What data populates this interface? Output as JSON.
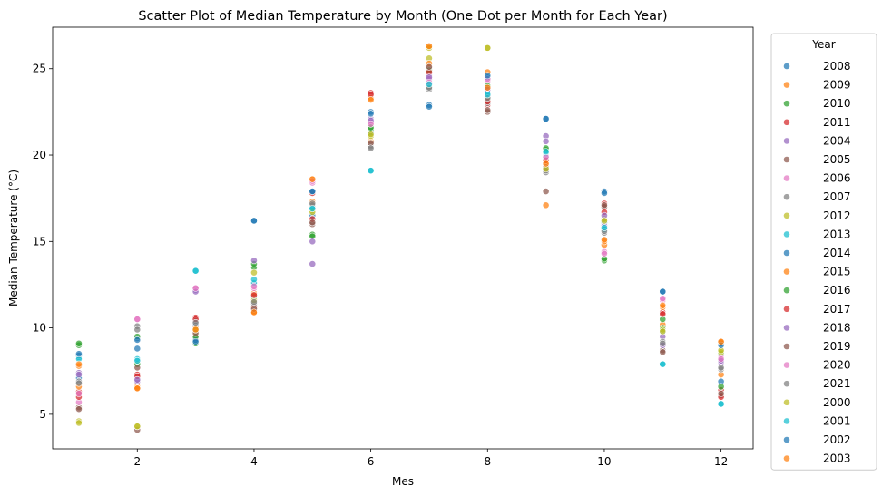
{
  "chart_data": {
    "type": "scatter",
    "title": "Scatter Plot of Median Temperature by Month (One Dot per Month for Each Year)",
    "xlabel": "Mes",
    "ylabel": "Median Temperature (°C)",
    "xlim": [
      0.55,
      12.55
    ],
    "ylim": [
      3.0,
      27.4
    ],
    "xticks": [
      2,
      4,
      6,
      8,
      10,
      12
    ],
    "yticks": [
      5,
      10,
      15,
      20,
      25
    ],
    "grid": false,
    "legend": {
      "title": "Year",
      "placement": "outside-right"
    },
    "series": [
      {
        "name": "2008",
        "color": "#1f77b4",
        "points": [
          [
            1,
            7.1
          ],
          [
            2,
            9.4
          ],
          [
            3,
            10.2
          ],
          [
            4,
            11.8
          ],
          [
            5,
            16.5
          ],
          [
            6,
            21.3
          ],
          [
            7,
            24.3
          ],
          [
            8,
            23.4
          ],
          [
            9,
            19.8
          ],
          [
            10,
            16.1
          ],
          [
            11,
            9.8
          ],
          [
            12,
            6.9
          ]
        ]
      },
      {
        "name": "2009",
        "color": "#ff7f0e",
        "points": [
          [
            1,
            7.8
          ],
          [
            2,
            6.6
          ],
          [
            3,
            9.6
          ],
          [
            4,
            12.0
          ],
          [
            5,
            17.3
          ],
          [
            6,
            20.8
          ],
          [
            7,
            26.3
          ],
          [
            8,
            24.8
          ],
          [
            9,
            17.1
          ],
          [
            10,
            14.8
          ],
          [
            11,
            10.2
          ],
          [
            12,
            7.3
          ]
        ]
      },
      {
        "name": "2010",
        "color": "#2ca02c",
        "points": [
          [
            1,
            9.0
          ],
          [
            2,
            7.9
          ],
          [
            3,
            9.1
          ],
          [
            4,
            13.5
          ],
          [
            5,
            15.4
          ],
          [
            6,
            21.5
          ],
          [
            7,
            24.0
          ],
          [
            8,
            23.2
          ],
          [
            9,
            20.3
          ],
          [
            10,
            13.9
          ],
          [
            11,
            10.0
          ],
          [
            12,
            8.5
          ]
        ]
      },
      {
        "name": "2011",
        "color": "#d62728",
        "points": [
          [
            1,
            6.3
          ],
          [
            2,
            7.3
          ],
          [
            3,
            10.6
          ],
          [
            4,
            11.2
          ],
          [
            5,
            17.8
          ],
          [
            6,
            23.6
          ],
          [
            7,
            24.7
          ],
          [
            8,
            22.9
          ],
          [
            9,
            19.4
          ],
          [
            10,
            17.2
          ],
          [
            11,
            10.9
          ],
          [
            12,
            6.4
          ]
        ]
      },
      {
        "name": "2004",
        "color": "#9467bd",
        "points": [
          [
            1,
            7.4
          ],
          [
            2,
            6.9
          ],
          [
            3,
            12.2
          ],
          [
            4,
            12.5
          ],
          [
            5,
            13.7
          ],
          [
            6,
            22.1
          ],
          [
            7,
            24.6
          ],
          [
            8,
            23.7
          ],
          [
            9,
            21.1
          ],
          [
            10,
            15.9
          ],
          [
            11,
            9.5
          ],
          [
            12,
            8.0
          ]
        ]
      },
      {
        "name": "2005",
        "color": "#8c564b",
        "points": [
          [
            1,
            5.4
          ],
          [
            2,
            4.1
          ],
          [
            3,
            9.4
          ],
          [
            4,
            11.0
          ],
          [
            5,
            16.0
          ],
          [
            6,
            20.6
          ],
          [
            7,
            25.0
          ],
          [
            8,
            22.5
          ],
          [
            9,
            17.9
          ],
          [
            10,
            17.0
          ],
          [
            11,
            8.7
          ],
          [
            12,
            6.1
          ]
        ]
      },
      {
        "name": "2006",
        "color": "#e377c2",
        "points": [
          [
            1,
            5.7
          ],
          [
            2,
            10.5
          ],
          [
            3,
            12.3
          ],
          [
            4,
            12.3
          ],
          [
            5,
            18.4
          ],
          [
            6,
            21.9
          ],
          [
            7,
            24.4
          ],
          [
            8,
            24.3
          ],
          [
            9,
            19.5
          ],
          [
            10,
            14.4
          ],
          [
            11,
            11.6
          ],
          [
            12,
            8.3
          ]
        ]
      },
      {
        "name": "2007",
        "color": "#7f7f7f",
        "points": [
          [
            1,
            6.9
          ],
          [
            2,
            10.1
          ],
          [
            3,
            10.4
          ],
          [
            4,
            11.4
          ],
          [
            5,
            17.1
          ],
          [
            6,
            20.5
          ],
          [
            7,
            23.8
          ],
          [
            8,
            23.0
          ],
          [
            9,
            19.0
          ],
          [
            10,
            15.5
          ],
          [
            11,
            9.2
          ],
          [
            12,
            7.6
          ]
        ]
      },
      {
        "name": "2012",
        "color": "#bcbd22",
        "points": [
          [
            1,
            4.6
          ],
          [
            2,
            4.3
          ],
          [
            3,
            9.8
          ],
          [
            4,
            11.6
          ],
          [
            5,
            16.8
          ],
          [
            6,
            21.1
          ],
          [
            7,
            25.6
          ],
          [
            8,
            26.2
          ],
          [
            9,
            19.2
          ],
          [
            10,
            16.3
          ],
          [
            11,
            9.9
          ],
          [
            12,
            8.6
          ]
        ]
      },
      {
        "name": "2013",
        "color": "#17becf",
        "points": [
          [
            1,
            8.3
          ],
          [
            2,
            8.2
          ],
          [
            3,
            13.3
          ],
          [
            4,
            12.6
          ],
          [
            5,
            16.9
          ],
          [
            6,
            19.1
          ],
          [
            7,
            24.1
          ],
          [
            8,
            23.6
          ],
          [
            9,
            20.1
          ],
          [
            10,
            15.7
          ],
          [
            11,
            7.9
          ],
          [
            12,
            5.6
          ]
        ]
      },
      {
        "name": "2014",
        "color": "#1f77b4",
        "points": [
          [
            1,
            8.4
          ],
          [
            2,
            8.8
          ],
          [
            3,
            9.3
          ],
          [
            4,
            16.2
          ],
          [
            5,
            17.9
          ],
          [
            6,
            22.5
          ],
          [
            7,
            22.9
          ],
          [
            8,
            24.5
          ],
          [
            9,
            22.1
          ],
          [
            10,
            17.9
          ],
          [
            11,
            12.1
          ],
          [
            12,
            9.1
          ]
        ]
      },
      {
        "name": "2015",
        "color": "#ff7f0e",
        "points": [
          [
            1,
            6.6
          ],
          [
            2,
            6.5
          ],
          [
            3,
            10.0
          ],
          [
            4,
            10.9
          ],
          [
            5,
            18.6
          ],
          [
            6,
            23.3
          ],
          [
            7,
            25.3
          ],
          [
            8,
            23.9
          ],
          [
            9,
            19.6
          ],
          [
            10,
            15.0
          ],
          [
            11,
            11.2
          ],
          [
            12,
            9.2
          ]
        ]
      },
      {
        "name": "2016",
        "color": "#2ca02c",
        "points": [
          [
            1,
            9.1
          ],
          [
            2,
            9.5
          ],
          [
            3,
            9.5
          ],
          [
            4,
            13.7
          ],
          [
            5,
            15.3
          ],
          [
            6,
            21.6
          ],
          [
            7,
            24.9
          ],
          [
            8,
            24.0
          ],
          [
            9,
            20.4
          ],
          [
            10,
            14.0
          ],
          [
            11,
            10.5
          ],
          [
            12,
            6.6
          ]
        ]
      },
      {
        "name": "2017",
        "color": "#d62728",
        "points": [
          [
            1,
            6.0
          ],
          [
            2,
            7.2
          ],
          [
            3,
            10.5
          ],
          [
            4,
            11.9
          ],
          [
            5,
            16.3
          ],
          [
            6,
            23.5
          ],
          [
            7,
            24.8
          ],
          [
            8,
            23.1
          ],
          [
            9,
            19.7
          ],
          [
            10,
            16.7
          ],
          [
            11,
            10.8
          ],
          [
            12,
            6.0
          ]
        ]
      },
      {
        "name": "2018",
        "color": "#9467bd",
        "points": [
          [
            1,
            7.3
          ],
          [
            2,
            7.0
          ],
          [
            3,
            12.1
          ],
          [
            4,
            13.9
          ],
          [
            5,
            15.0
          ],
          [
            6,
            22.0
          ],
          [
            7,
            24.5
          ],
          [
            8,
            23.8
          ],
          [
            9,
            20.8
          ],
          [
            10,
            16.5
          ],
          [
            11,
            9.0
          ],
          [
            12,
            8.1
          ]
        ]
      },
      {
        "name": "2019",
        "color": "#8c564b",
        "points": [
          [
            1,
            5.3
          ],
          [
            2,
            7.7
          ],
          [
            3,
            9.7
          ],
          [
            4,
            11.1
          ],
          [
            5,
            16.1
          ],
          [
            6,
            20.7
          ],
          [
            7,
            25.1
          ],
          [
            8,
            22.6
          ],
          [
            9,
            19.3
          ],
          [
            10,
            17.1
          ],
          [
            11,
            8.6
          ],
          [
            12,
            6.2
          ]
        ]
      },
      {
        "name": "2020",
        "color": "#e377c2",
        "points": [
          [
            1,
            6.2
          ],
          [
            2,
            10.5
          ],
          [
            3,
            12.3
          ],
          [
            4,
            12.4
          ],
          [
            5,
            18.5
          ],
          [
            6,
            21.8
          ],
          [
            7,
            24.2
          ],
          [
            8,
            24.4
          ],
          [
            9,
            19.9
          ],
          [
            10,
            14.3
          ],
          [
            11,
            11.7
          ],
          [
            12,
            8.2
          ]
        ]
      },
      {
        "name": "2021",
        "color": "#7f7f7f",
        "points": [
          [
            1,
            6.8
          ],
          [
            2,
            9.9
          ],
          [
            3,
            10.3
          ],
          [
            4,
            11.5
          ],
          [
            5,
            17.2
          ],
          [
            6,
            20.4
          ],
          [
            7,
            23.9
          ],
          [
            8,
            23.3
          ],
          [
            9,
            19.1
          ],
          [
            10,
            15.6
          ],
          [
            11,
            9.1
          ],
          [
            12,
            7.7
          ]
        ]
      },
      {
        "name": "2000",
        "color": "#bcbd22",
        "points": [
          [
            1,
            4.5
          ],
          [
            2,
            4.3
          ],
          [
            3,
            9.9
          ],
          [
            4,
            13.2
          ],
          [
            5,
            16.7
          ],
          [
            6,
            21.2
          ],
          [
            7,
            26.2
          ],
          [
            8,
            26.2
          ],
          [
            9,
            19.2
          ],
          [
            10,
            16.2
          ],
          [
            11,
            9.8
          ],
          [
            12,
            8.7
          ]
        ]
      },
      {
        "name": "2001",
        "color": "#17becf",
        "points": [
          [
            1,
            8.2
          ],
          [
            2,
            8.1
          ],
          [
            3,
            13.3
          ],
          [
            4,
            12.8
          ],
          [
            5,
            16.9
          ],
          [
            6,
            19.1
          ],
          [
            7,
            24.1
          ],
          [
            8,
            23.5
          ],
          [
            9,
            20.2
          ],
          [
            10,
            15.8
          ],
          [
            11,
            7.9
          ],
          [
            12,
            5.6
          ]
        ]
      },
      {
        "name": "2002",
        "color": "#1f77b4",
        "points": [
          [
            1,
            8.5
          ],
          [
            2,
            9.3
          ],
          [
            3,
            9.2
          ],
          [
            4,
            16.2
          ],
          [
            5,
            17.9
          ],
          [
            6,
            22.4
          ],
          [
            7,
            22.8
          ],
          [
            8,
            24.6
          ],
          [
            9,
            22.1
          ],
          [
            10,
            17.8
          ],
          [
            11,
            12.1
          ],
          [
            12,
            9.0
          ]
        ]
      },
      {
        "name": "2003",
        "color": "#ff7f0e",
        "points": [
          [
            1,
            7.9
          ],
          [
            2,
            6.5
          ],
          [
            3,
            9.9
          ],
          [
            4,
            10.9
          ],
          [
            5,
            18.6
          ],
          [
            6,
            23.2
          ],
          [
            7,
            26.3
          ],
          [
            8,
            23.9
          ],
          [
            9,
            19.5
          ],
          [
            10,
            15.1
          ],
          [
            11,
            11.3
          ],
          [
            12,
            9.2
          ]
        ]
      }
    ]
  }
}
